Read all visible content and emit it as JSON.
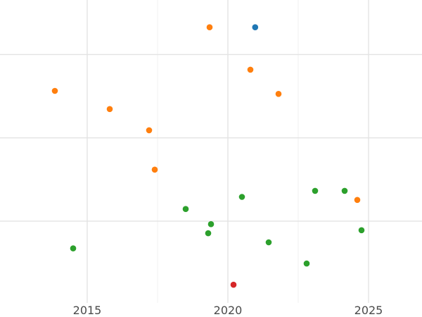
{
  "chart_data": {
    "type": "scatter",
    "title": "",
    "xlabel": "",
    "ylabel": "",
    "x_axis": {
      "ticks": [
        2015,
        2020,
        2025
      ],
      "tick_labels": [
        "2015",
        "2020",
        "2025"
      ],
      "range": [
        2011.9,
        2026.9
      ]
    },
    "y_axis": {
      "ticks": [],
      "range": [
        0,
        1
      ]
    },
    "grid": true,
    "legend": "none",
    "series": [
      {
        "color": "#1f77b4",
        "points": [
          {
            "x": 2020.97,
            "y": 0.91
          }
        ]
      },
      {
        "color": "#ff7f0e",
        "points": [
          {
            "x": 2019.35,
            "y": 0.91
          },
          {
            "x": 2020.8,
            "y": 0.77
          },
          {
            "x": 2013.85,
            "y": 0.7
          },
          {
            "x": 2021.8,
            "y": 0.69
          },
          {
            "x": 2015.8,
            "y": 0.64
          },
          {
            "x": 2017.2,
            "y": 0.57
          },
          {
            "x": 2017.4,
            "y": 0.44
          },
          {
            "x": 2024.6,
            "y": 0.34
          }
        ]
      },
      {
        "color": "#2ca02c",
        "points": [
          {
            "x": 2023.1,
            "y": 0.37
          },
          {
            "x": 2024.15,
            "y": 0.37
          },
          {
            "x": 2020.5,
            "y": 0.35
          },
          {
            "x": 2018.5,
            "y": 0.31
          },
          {
            "x": 2019.4,
            "y": 0.26
          },
          {
            "x": 2019.3,
            "y": 0.23
          },
          {
            "x": 2024.75,
            "y": 0.24
          },
          {
            "x": 2021.45,
            "y": 0.2
          },
          {
            "x": 2014.5,
            "y": 0.18
          },
          {
            "x": 2022.8,
            "y": 0.13
          }
        ]
      },
      {
        "color": "#d62728",
        "points": [
          {
            "x": 2020.2,
            "y": 0.06
          }
        ]
      }
    ]
  }
}
